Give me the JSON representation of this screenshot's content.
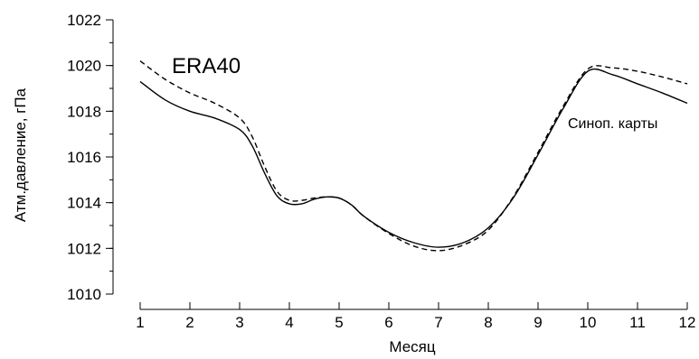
{
  "chart_data": {
    "type": "line",
    "title": "",
    "xlabel": "Месяц",
    "ylabel": "Атм.давление, гПа",
    "xlim": [
      1,
      12
    ],
    "ylim": [
      1010,
      1022
    ],
    "x_ticks": [
      1,
      2,
      3,
      4,
      5,
      6,
      7,
      8,
      9,
      10,
      11,
      12
    ],
    "y_ticks": [
      1010,
      1012,
      1014,
      1016,
      1018,
      1020,
      1022
    ],
    "y_minor_step": 1,
    "grid": false,
    "annotations": [
      {
        "text": "ERA40",
        "series": "ERA40",
        "size": "large"
      },
      {
        "text": "Синоп. карты",
        "series": "Синоп. карты",
        "size": "small"
      }
    ],
    "series": [
      {
        "name": "Синоп. карты",
        "style": "solid",
        "color": "#000000",
        "x": [
          1,
          1.5,
          2,
          2.5,
          3,
          3.25,
          3.5,
          3.75,
          4,
          4.25,
          4.5,
          4.75,
          5,
          5.25,
          5.5,
          6,
          6.5,
          7,
          7.5,
          8,
          8.5,
          9,
          9.5,
          10,
          10.5,
          11,
          11.5,
          12
        ],
        "y": [
          1019.3,
          1018.5,
          1018.0,
          1017.7,
          1017.2,
          1016.5,
          1015.3,
          1014.3,
          1013.95,
          1013.95,
          1014.15,
          1014.25,
          1014.2,
          1013.9,
          1013.4,
          1012.7,
          1012.25,
          1012.05,
          1012.25,
          1012.9,
          1014.2,
          1016.1,
          1018.1,
          1019.75,
          1019.6,
          1019.2,
          1018.8,
          1018.35
        ]
      },
      {
        "name": "ERA40",
        "style": "dashed",
        "color": "#000000",
        "x": [
          1,
          1.5,
          2,
          2.5,
          3,
          3.25,
          3.5,
          3.75,
          4,
          4.25,
          4.5,
          4.75,
          5,
          5.25,
          5.5,
          6,
          6.5,
          7,
          7.5,
          8,
          8.5,
          9,
          9.5,
          10,
          10.5,
          11,
          11.5,
          12
        ],
        "y": [
          1020.2,
          1019.4,
          1018.8,
          1018.35,
          1017.7,
          1016.9,
          1015.6,
          1014.5,
          1014.1,
          1014.1,
          1014.2,
          1014.25,
          1014.2,
          1013.9,
          1013.4,
          1012.65,
          1012.1,
          1011.9,
          1012.15,
          1012.8,
          1014.25,
          1016.2,
          1018.2,
          1019.85,
          1019.9,
          1019.75,
          1019.5,
          1019.2
        ]
      }
    ]
  }
}
